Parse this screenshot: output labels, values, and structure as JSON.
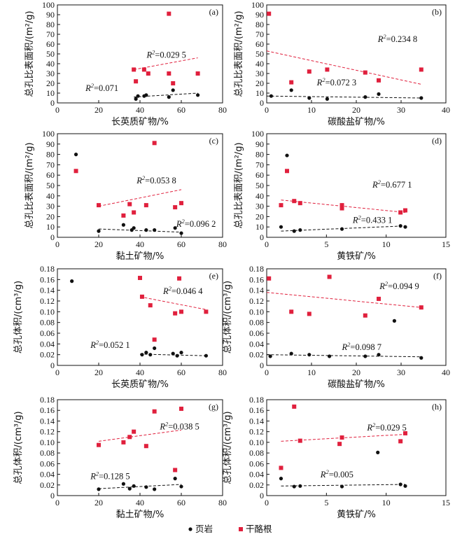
{
  "chart_data": [
    {
      "type": "scatter",
      "panel": "(a)",
      "xlabel": "长英质矿物/%",
      "ylabel": "总孔比表面积/(m²/g)",
      "xlim": [
        0,
        80
      ],
      "ylim": [
        0,
        100
      ],
      "xticks": [
        0,
        20,
        40,
        60,
        80
      ],
      "yticks": [
        0,
        10,
        20,
        30,
        40,
        50,
        60,
        70,
        80,
        90,
        100
      ],
      "series": [
        {
          "name": "页岩",
          "trend_r2": "0.071",
          "points": [
            [
              38,
              4
            ],
            [
              39,
              7
            ],
            [
              42,
              7
            ],
            [
              43,
              8
            ],
            [
              54,
              6
            ],
            [
              56,
              13
            ],
            [
              68,
              8
            ]
          ],
          "trend": [
            [
              37,
              6
            ],
            [
              68,
              10
            ]
          ]
        },
        {
          "name": "干酪根",
          "trend_r2": "0.029 5",
          "points": [
            [
              37,
              34
            ],
            [
              38,
              22
            ],
            [
              42,
              34
            ],
            [
              44,
              30
            ],
            [
              54,
              91
            ],
            [
              54,
              30
            ],
            [
              56,
              20
            ],
            [
              68,
              30
            ]
          ],
          "trend": [
            [
              37,
              34
            ],
            [
              68,
              46
            ]
          ]
        }
      ]
    },
    {
      "type": "scatter",
      "panel": "(b)",
      "xlabel": "碳酸盐矿物/%",
      "ylabel": "总孔比表面积/(m²/g)",
      "xlim": [
        0,
        40
      ],
      "ylim": [
        0,
        100
      ],
      "xticks": [
        0,
        10,
        20,
        30,
        40
      ],
      "yticks": [
        0,
        10,
        20,
        30,
        40,
        50,
        60,
        70,
        80,
        90,
        100
      ],
      "series": [
        {
          "name": "页岩",
          "trend_r2": "0.072 3",
          "points": [
            [
              1,
              7
            ],
            [
              5.5,
              13
            ],
            [
              9.5,
              5
            ],
            [
              13.5,
              4
            ],
            [
              22,
              6
            ],
            [
              25,
              9
            ],
            [
              34.5,
              5
            ]
          ],
          "trend": [
            [
              0,
              7
            ],
            [
              34.5,
              5
            ]
          ]
        },
        {
          "name": "干酪根",
          "trend_r2": "0.234 8",
          "points": [
            [
              0.5,
              91
            ],
            [
              5.5,
              21
            ],
            [
              9.5,
              32
            ],
            [
              13.5,
              34
            ],
            [
              22,
              31
            ],
            [
              25,
              23
            ],
            [
              34.5,
              34
            ]
          ],
          "trend": [
            [
              0,
              53
            ],
            [
              34.5,
              19
            ]
          ]
        }
      ]
    },
    {
      "type": "scatter",
      "panel": "(c)",
      "xlabel": "黏土矿物/%",
      "ylabel": "总孔比表面积/(m²/g)",
      "xlim": [
        0,
        80
      ],
      "ylim": [
        0,
        100
      ],
      "xticks": [
        0,
        20,
        40,
        60,
        80
      ],
      "yticks": [
        0,
        10,
        20,
        30,
        40,
        50,
        60,
        70,
        80,
        90,
        100
      ],
      "series": [
        {
          "name": "页岩",
          "trend_r2": "0.096 2",
          "points": [
            [
              9,
              80
            ],
            [
              20,
              6
            ],
            [
              32,
              12
            ],
            [
              36,
              7
            ],
            [
              37,
              9
            ],
            [
              43,
              7
            ],
            [
              47,
              7
            ],
            [
              57,
              9
            ],
            [
              60,
              4
            ]
          ],
          "trend": [
            [
              20,
              8
            ],
            [
              60,
              5
            ]
          ]
        },
        {
          "name": "干酪根",
          "trend_r2": "0.053 8",
          "points": [
            [
              9,
              64
            ],
            [
              20,
              31
            ],
            [
              32,
              21
            ],
            [
              35,
              32
            ],
            [
              37,
              24
            ],
            [
              43,
              31
            ],
            [
              47,
              91
            ],
            [
              57,
              29
            ],
            [
              60,
              33
            ]
          ],
          "trend": [
            [
              20,
              30
            ],
            [
              60,
              46
            ]
          ]
        }
      ]
    },
    {
      "type": "scatter",
      "panel": "(d)",
      "xlabel": "黄铁矿/%",
      "ylabel": "总孔比表面积/(m²/g)",
      "xlim": [
        0,
        15
      ],
      "ylim": [
        0,
        100
      ],
      "xticks": [
        0,
        5,
        10,
        15
      ],
      "yticks": [
        0,
        10,
        20,
        30,
        40,
        50,
        60,
        70,
        80,
        90,
        100
      ],
      "series": [
        {
          "name": "页岩",
          "trend_r2": "0.433 1",
          "points": [
            [
              1.2,
              10
            ],
            [
              1.7,
              79
            ],
            [
              2.3,
              6
            ],
            [
              2.8,
              7
            ],
            [
              6.3,
              8
            ],
            [
              11.2,
              11
            ],
            [
              11.6,
              10
            ]
          ],
          "trend": [
            [
              1.2,
              6
            ],
            [
              11.6,
              11
            ]
          ]
        },
        {
          "name": "干酪根",
          "trend_r2": "0.677 1",
          "points": [
            [
              1.2,
              31
            ],
            [
              1.7,
              64
            ],
            [
              2.3,
              35
            ],
            [
              2.8,
              33
            ],
            [
              6.3,
              31
            ],
            [
              6.3,
              28
            ],
            [
              11.2,
              24
            ],
            [
              11.6,
              26
            ]
          ],
          "trend": [
            [
              1.2,
              36
            ],
            [
              11.6,
              24
            ]
          ]
        }
      ]
    },
    {
      "type": "scatter",
      "panel": "(e)",
      "xlabel": "长英质矿物/%",
      "ylabel": "总孔体积/(cm³/g)",
      "xlim": [
        0,
        80
      ],
      "ylim": [
        0,
        0.18
      ],
      "xticks": [
        0,
        20,
        40,
        60,
        80
      ],
      "yticks": [
        0,
        0.02,
        0.04,
        0.06,
        0.08,
        0.1,
        0.12,
        0.14,
        0.16,
        0.18
      ],
      "series": [
        {
          "name": "页岩",
          "trend_r2": "0.052 1",
          "points": [
            [
              7,
              0.157
            ],
            [
              41,
              0.02
            ],
            [
              43,
              0.024
            ],
            [
              45,
              0.02
            ],
            [
              47,
              0.032
            ],
            [
              56,
              0.022
            ],
            [
              58,
              0.018
            ],
            [
              60,
              0.024
            ],
            [
              72,
              0.018
            ]
          ],
          "trend": [
            [
              40,
              0.021
            ],
            [
              72,
              0.018
            ]
          ]
        },
        {
          "name": "干酪根",
          "trend_r2": "0.046 4",
          "points": [
            [
              40,
              0.163
            ],
            [
              41,
              0.128
            ],
            [
              45,
              0.112
            ],
            [
              47,
              0.048
            ],
            [
              57,
              0.097
            ],
            [
              59,
              0.162
            ],
            [
              60,
              0.1
            ],
            [
              72,
              0.1
            ]
          ],
          "trend": [
            [
              40,
              0.128
            ],
            [
              72,
              0.104
            ]
          ]
        }
      ]
    },
    {
      "type": "scatter",
      "panel": "(f)",
      "xlabel": "碳酸盐矿物/%",
      "ylabel": "总孔体积/(cm³/g)",
      "xlim": [
        0,
        40
      ],
      "ylim": [
        0,
        0.18
      ],
      "xticks": [
        0,
        10,
        20,
        30,
        40
      ],
      "yticks": [
        0,
        0.02,
        0.04,
        0.06,
        0.08,
        0.1,
        0.12,
        0.14,
        0.16,
        0.18
      ],
      "series": [
        {
          "name": "页岩",
          "trend_r2": "0.098 7",
          "points": [
            [
              0.8,
              0.017
            ],
            [
              5.5,
              0.022
            ],
            [
              9.5,
              0.02
            ],
            [
              14,
              0.017
            ],
            [
              22,
              0.017
            ],
            [
              25,
              0.02
            ],
            [
              28.5,
              0.083
            ],
            [
              34.5,
              0.014
            ]
          ],
          "trend": [
            [
              0,
              0.02
            ],
            [
              34.5,
              0.016
            ]
          ]
        },
        {
          "name": "干酪根",
          "trend_r2": "0.094 9",
          "points": [
            [
              0.5,
              0.162
            ],
            [
              5.5,
              0.1
            ],
            [
              9.5,
              0.096
            ],
            [
              14,
              0.165
            ],
            [
              22,
              0.093
            ],
            [
              25,
              0.124
            ],
            [
              34.5,
              0.108
            ]
          ],
          "trend": [
            [
              0,
              0.136
            ],
            [
              34.5,
              0.108
            ]
          ]
        }
      ]
    },
    {
      "type": "scatter",
      "panel": "(g)",
      "xlabel": "黏土矿物/%",
      "ylabel": "总孔体积/(cm³/g)",
      "xlim": [
        0,
        80
      ],
      "ylim": [
        0,
        0.18
      ],
      "xticks": [
        0,
        20,
        40,
        60,
        80
      ],
      "yticks": [
        0,
        0.02,
        0.04,
        0.06,
        0.08,
        0.1,
        0.12,
        0.14,
        0.16,
        0.18
      ],
      "series": [
        {
          "name": "页岩",
          "trend_r2": "0.128 5",
          "points": [
            [
              20,
              0.012
            ],
            [
              32,
              0.022
            ],
            [
              35,
              0.013
            ],
            [
              37,
              0.018
            ],
            [
              43,
              0.016
            ],
            [
              47,
              0.012
            ],
            [
              57,
              0.032
            ],
            [
              60,
              0.017
            ]
          ],
          "trend": [
            [
              20,
              0.013
            ],
            [
              60,
              0.021
            ]
          ]
        },
        {
          "name": "干酪根",
          "trend_r2": "0.038 5",
          "points": [
            [
              20,
              0.095
            ],
            [
              32,
              0.1
            ],
            [
              35,
              0.11
            ],
            [
              37,
              0.12
            ],
            [
              43,
              0.093
            ],
            [
              47,
              0.158
            ],
            [
              57,
              0.048
            ],
            [
              60,
              0.163
            ]
          ],
          "trend": [
            [
              20,
              0.102
            ],
            [
              60,
              0.123
            ]
          ]
        }
      ]
    },
    {
      "type": "scatter",
      "panel": "(h)",
      "xlabel": "黄铁矿/%",
      "ylabel": "总孔体积/(cm³/g)",
      "xlim": [
        0,
        15
      ],
      "ylim": [
        0,
        0.18
      ],
      "xticks": [
        0,
        5,
        10,
        15
      ],
      "yticks": [
        0,
        0.02,
        0.04,
        0.06,
        0.08,
        0.1,
        0.12,
        0.14,
        0.16,
        0.18
      ],
      "series": [
        {
          "name": "页岩",
          "trend_r2": "0.005",
          "points": [
            [
              1.2,
              0.032
            ],
            [
              2.3,
              0.017
            ],
            [
              2.8,
              0.018
            ],
            [
              6.3,
              0.017
            ],
            [
              9.3,
              0.081
            ],
            [
              11.2,
              0.021
            ],
            [
              11.6,
              0.018
            ]
          ],
          "trend": [
            [
              1.2,
              0.018
            ],
            [
              11.6,
              0.021
            ]
          ]
        },
        {
          "name": "干酪根",
          "trend_r2": "0.029 5",
          "points": [
            [
              1.2,
              0.052
            ],
            [
              2.3,
              0.167
            ],
            [
              2.8,
              0.103
            ],
            [
              6.3,
              0.109
            ],
            [
              6.1,
              0.097
            ],
            [
              11.2,
              0.102
            ],
            [
              11.6,
              0.117
            ]
          ],
          "trend": [
            [
              1.2,
              0.102
            ],
            [
              11.6,
              0.115
            ]
          ]
        }
      ]
    }
  ],
  "legend": {
    "items": [
      {
        "name": "页岩",
        "marker": "circle",
        "color": "#111111"
      },
      {
        "name": "干酪根",
        "marker": "square",
        "color": "#e0203d"
      }
    ]
  },
  "colors": {
    "shale": "#111111",
    "kerogen": "#e0203d",
    "axis": "#111111"
  }
}
